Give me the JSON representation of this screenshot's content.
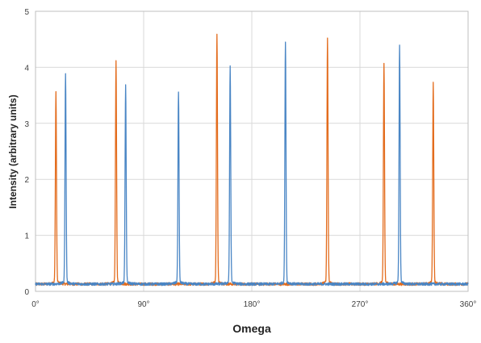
{
  "chart_data": {
    "type": "line",
    "xlabel": "Omega",
    "ylabel": "Intensity (arbitrary units)",
    "xlim": [
      0,
      360
    ],
    "ylim": [
      0,
      5
    ],
    "x_ticks": [
      "0°",
      "90°",
      "180°",
      "270°",
      "360°"
    ],
    "y_ticks": [
      "0",
      "1",
      "2",
      "3",
      "4",
      "5"
    ],
    "grid": true,
    "legend": "none",
    "baseline": 0.13,
    "series": [
      {
        "color": "#e36c1d",
        "peaks_x": [
          17,
          67,
          151,
          243,
          290,
          331
        ],
        "peaks_y": [
          3.5,
          4.05,
          4.55,
          4.45,
          4.0,
          3.65
        ]
      },
      {
        "color": "#4a86c5",
        "peaks_x": [
          25,
          75,
          119,
          162,
          208,
          303
        ],
        "peaks_y": [
          3.85,
          3.62,
          3.52,
          3.97,
          4.4,
          4.33
        ]
      }
    ]
  }
}
